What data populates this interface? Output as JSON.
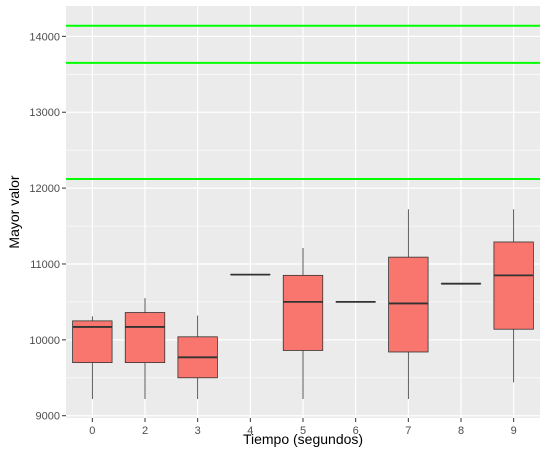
{
  "chart_data": {
    "type": "boxplot",
    "xlabel": "Tiempo (segundos)",
    "ylabel": "Mayor valor",
    "categories": [
      "0",
      "2",
      "3",
      "4",
      "5",
      "6",
      "7",
      "8",
      "9"
    ],
    "ylim": [
      8970,
      14400
    ],
    "yticks": [
      9000,
      10000,
      11000,
      12000,
      13000,
      14000
    ],
    "grid": true,
    "legend": "none",
    "boxes": [
      {
        "x": "0",
        "min": 9220,
        "q1": 9700,
        "median": 10170,
        "q3": 10250,
        "max": 10310
      },
      {
        "x": "2",
        "min": 9220,
        "q1": 9700,
        "median": 10170,
        "q3": 10360,
        "max": 10550
      },
      {
        "x": "3",
        "min": 9220,
        "q1": 9500,
        "median": 9770,
        "q3": 10040,
        "max": 10320
      },
      {
        "x": "4",
        "min": 10860,
        "q1": 10860,
        "median": 10860,
        "q3": 10860,
        "max": 10860
      },
      {
        "x": "5",
        "min": 9220,
        "q1": 9860,
        "median": 10500,
        "q3": 10850,
        "max": 11210
      },
      {
        "x": "6",
        "min": 10500,
        "q1": 10500,
        "median": 10500,
        "q3": 10500,
        "max": 10500
      },
      {
        "x": "7",
        "min": 9220,
        "q1": 9840,
        "median": 10480,
        "q3": 11090,
        "max": 11720
      },
      {
        "x": "8",
        "min": 10740,
        "q1": 10740,
        "median": 10740,
        "q3": 10740,
        "max": 10740
      },
      {
        "x": "9",
        "min": 9440,
        "q1": 10140,
        "median": 10850,
        "q3": 11290,
        "max": 11720
      }
    ],
    "hlines": [
      12120,
      13650,
      14140
    ],
    "colors": {
      "panel": "#ebebeb",
      "grid": "#ffffff",
      "box_fill": "#f8766d",
      "box_line": "#333333",
      "hline": "#00ff00"
    }
  }
}
